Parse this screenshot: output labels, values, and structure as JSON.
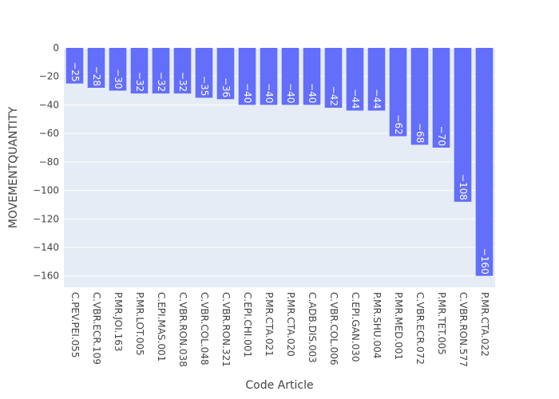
{
  "chart_data": {
    "type": "bar",
    "xlabel": "Code Article",
    "ylabel": "MOVEMENTQUANTITY",
    "ylim": [
      -168,
      0
    ],
    "yticks": [
      0,
      -20,
      -40,
      -60,
      -80,
      -100,
      -120,
      -140,
      -160
    ],
    "ytick_labels": [
      "0",
      "−20",
      "−40",
      "−60",
      "−80",
      "−100",
      "−120",
      "−140",
      "−160"
    ],
    "grid": true,
    "bar_color": "#636efa",
    "plot_bg": "#e5ecf6",
    "categories": [
      "C.PEV.PEI.055",
      "C.VBR.ECR.109",
      "P.MR.JOI.163",
      "P.MR.LOT.005",
      "C.EPI.MAS.001",
      "C.VBR.RON.038",
      "C.VBR.COL.048",
      "C.VBR.RON.321",
      "C.EPI.CHI.001",
      "P.MR.CTA.021",
      "P.MR.CTA.020",
      "C.ADB.DIS.003",
      "C.VBR.COL.006",
      "C.EPI.GAN.030",
      "P.MR.SHU.004",
      "P.MR.MED.001",
      "C.VBR.ECR.072",
      "P.MR.TET.005",
      "C.VBR.RON.577",
      "P.MR.CTA.022"
    ],
    "values": [
      -25,
      -28,
      -30,
      -32,
      -32,
      -32,
      -35,
      -36,
      -40,
      -40,
      -40,
      -40,
      -42,
      -44,
      -44,
      -62,
      -68,
      -70,
      -108,
      -160
    ],
    "value_labels": [
      "−25",
      "−28",
      "−30",
      "−32",
      "−32",
      "−32",
      "−35",
      "−36",
      "−40",
      "−40",
      "−40",
      "−40",
      "−42",
      "−44",
      "−44",
      "−62",
      "−68",
      "−70",
      "−108",
      "−160"
    ]
  }
}
